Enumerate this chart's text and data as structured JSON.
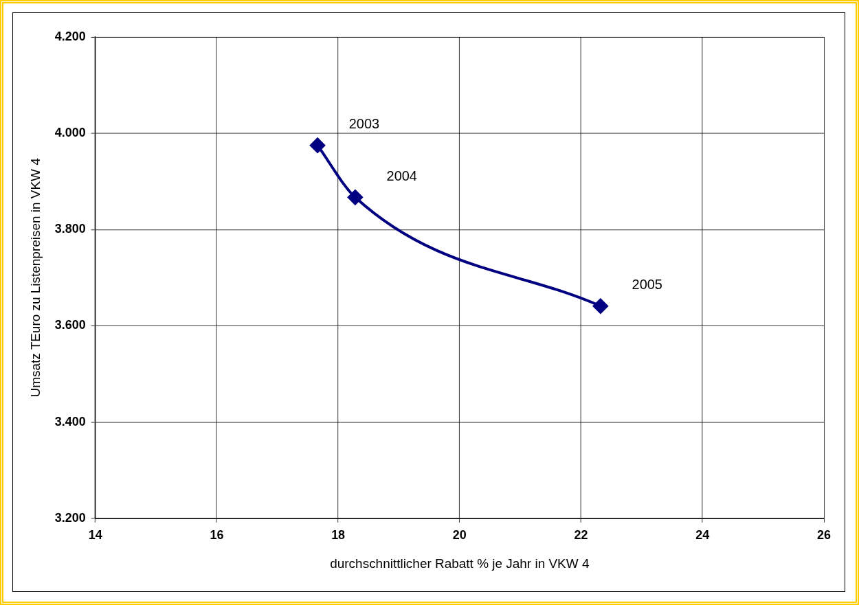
{
  "chart_data": {
    "type": "line",
    "xlabel": "durchschnittlicher Rabatt % je Jahr in VKW 4",
    "ylabel": "Umsatz TEuro zu Listenpreisen in VKW 4",
    "x": [
      17.66,
      18.28,
      22.32
    ],
    "series": [
      {
        "color": "#000080",
        "values": [
          3975,
          3867,
          3641
        ]
      }
    ],
    "xlim": [
      14,
      26
    ],
    "xticks": [
      14,
      16,
      18,
      20,
      22,
      24,
      26
    ],
    "ylim": [
      3200,
      4200
    ],
    "yticks": [
      {
        "value": 3200,
        "label": "3.200"
      },
      {
        "value": 3400,
        "label": "3.400"
      },
      {
        "value": 3600,
        "label": "3.600"
      },
      {
        "value": 3800,
        "label": "3.800"
      },
      {
        "value": 4000,
        "label": "4.000"
      },
      {
        "value": 4200,
        "label": "4.200"
      }
    ],
    "annotations": [
      {
        "text": "2003",
        "x": 17.66,
        "y": 3975
      },
      {
        "text": "2004",
        "x": 18.28,
        "y": 3867
      },
      {
        "text": "2005",
        "x": 22.32,
        "y": 3641
      }
    ],
    "grid": true,
    "legend": false,
    "marker": "diamond",
    "line_style": "solid"
  }
}
